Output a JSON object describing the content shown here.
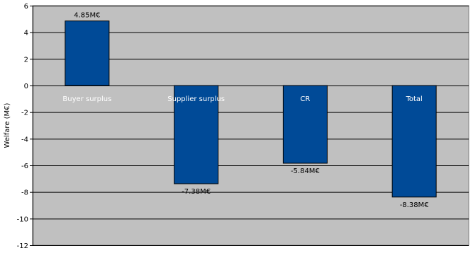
{
  "chart_data": {
    "type": "bar",
    "categories": [
      "Buyer surplus",
      "Supplier surplus",
      "CR",
      "Total"
    ],
    "values": [
      4.85,
      -7.38,
      -5.84,
      -8.38
    ],
    "data_labels": [
      "4.85M€",
      "-7.38M€",
      "-5.84M€",
      "-8.38M€"
    ],
    "title": "",
    "xlabel": "",
    "ylabel": "Welfare (M€)",
    "ylim": [
      -12,
      6
    ],
    "yticks": [
      6,
      4,
      2,
      0,
      -2,
      -4,
      -6,
      -8,
      -10,
      -12
    ],
    "grid": true,
    "legend": "none"
  },
  "colors": {
    "plot_background": "#c0c0c0",
    "bar_fill": "#004a97",
    "bar_stroke": "#000000",
    "gridline": "#000000",
    "category_label": "#ffffff"
  }
}
